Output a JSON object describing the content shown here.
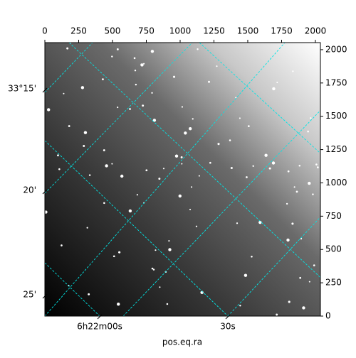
{
  "chart_data": {
    "type": "image",
    "xlabel": "pos.eq.ra",
    "xlim": [
      0,
      2037
    ],
    "xticks": [
      0,
      250,
      500,
      750,
      1000,
      1250,
      1500,
      1750,
      2000
    ],
    "ylim": [
      0,
      2053
    ],
    "yticks": [
      0,
      250,
      500,
      750,
      1000,
      1250,
      1500,
      1750,
      2000
    ],
    "ra_ticks": [
      "6h22m00s",
      "30s"
    ],
    "dec_ticks": [
      "33°15'",
      "20'",
      "25'"
    ],
    "grid_color": "#00e5e5"
  }
}
